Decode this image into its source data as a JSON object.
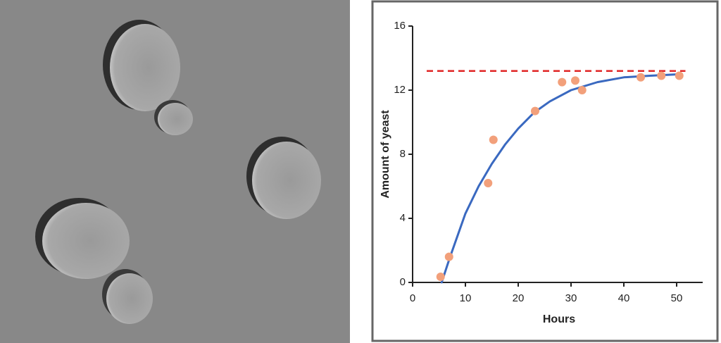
{
  "chart_data": {
    "type": "scatter",
    "x_label": "Hours",
    "y_label": "Amount of yeast",
    "xlim": [
      0,
      55
    ],
    "ylim": [
      0,
      16
    ],
    "xticks": [
      0,
      10,
      20,
      30,
      40,
      50
    ],
    "yticks": [
      0,
      4,
      8,
      12,
      16
    ],
    "grid": false,
    "series": [
      {
        "type": "scatter",
        "color": "#f2a07b",
        "x": [
          5.3,
          6.9,
          14.3,
          15.3,
          23.2,
          28.3,
          30.8,
          32.1,
          43.2,
          47.1,
          50.5
        ],
        "values": [
          0.35,
          1.6,
          6.2,
          8.9,
          10.7,
          12.5,
          12.6,
          12.0,
          12.8,
          12.9,
          12.9
        ]
      },
      {
        "type": "line",
        "color": "#3a69c0",
        "x": [
          5.5,
          7,
          10,
          12.5,
          15,
          17.5,
          20,
          23,
          26,
          30,
          35,
          40,
          45,
          51
        ],
        "values": [
          0,
          1.5,
          4.3,
          6.0,
          7.4,
          8.6,
          9.6,
          10.6,
          11.3,
          12.0,
          12.5,
          12.8,
          12.9,
          13.0
        ]
      }
    ],
    "reference_line": {
      "value": 13.2,
      "color": "#e02626",
      "dashed": true
    }
  }
}
